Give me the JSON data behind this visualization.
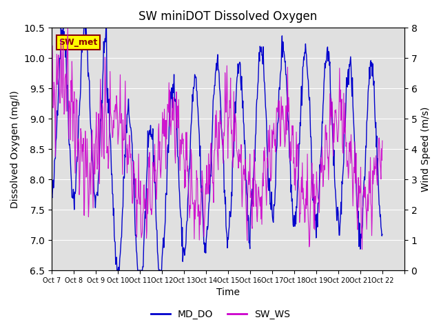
{
  "title": "SW miniDOT Dissolved Oxygen",
  "ylabel_left": "Dissolved Oxygen (mg/l)",
  "ylabel_right": "Wind Speed (m/s)",
  "xlabel": "Time",
  "ylim_left": [
    6.5,
    10.5
  ],
  "ylim_right": [
    0.0,
    8.0
  ],
  "yticks_left": [
    6.5,
    7.0,
    7.5,
    8.0,
    8.5,
    9.0,
    9.5,
    10.0,
    10.5
  ],
  "yticks_right": [
    0.0,
    1.0,
    2.0,
    3.0,
    4.0,
    5.0,
    6.0,
    7.0,
    8.0
  ],
  "color_do": "#0000cc",
  "color_ws": "#cc00cc",
  "background_color": "#e0e0e0",
  "label_do": "MD_DO",
  "label_ws": "SW_WS",
  "annotation_text": "SW_met",
  "annotation_bg": "#ffff00",
  "annotation_edge": "#8B0000",
  "annotation_color": "#8B0000",
  "xtick_positions": [
    0,
    1,
    2,
    3,
    4,
    5,
    6,
    7,
    8,
    9,
    10,
    11,
    12,
    13,
    14,
    15,
    16
  ],
  "xtick_labels": [
    "Oct 7",
    "Oct 8",
    "Oct 9",
    "Oct 10",
    "Oct 11",
    "Oct 12",
    "Oct 13",
    "Oct 14",
    "Oct 15",
    "Oct 16",
    "Oct 17",
    "Oct 18",
    "Oct 19",
    "Oct 20",
    "Oct 21",
    "Oct 22",
    ""
  ],
  "n_days": 15,
  "points_per_day": 48
}
